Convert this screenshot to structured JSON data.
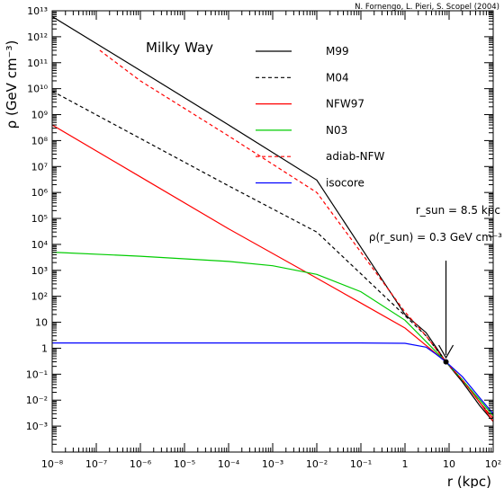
{
  "chart_data": {
    "type": "line",
    "credit": "N. Fornengo, L. Pieri, S. Scopel (2004)",
    "title": "Milky Way",
    "ylabel": "ρ (GeV cm⁻³)",
    "xlabel": "r (kpc)",
    "x_scale": "log",
    "y_scale": "log",
    "xlim": [
      1e-08,
      100
    ],
    "ylim": [
      0.0001,
      10000000000000.0
    ],
    "x_tick_labels": [
      "10⁻⁸",
      "10⁻⁷",
      "10⁻⁶",
      "10⁻⁵",
      "10⁻⁴",
      "10⁻³",
      "10⁻²",
      "10⁻¹",
      "1",
      "10",
      "10²"
    ],
    "y_tick_labels": [
      "10⁻³",
      "10⁻²",
      "10⁻¹",
      "1",
      "10",
      "10²",
      "10³",
      "10⁴",
      "10⁵",
      "10⁶",
      "10⁷",
      "10⁸",
      "10⁹",
      "10¹⁰",
      "10¹¹",
      "10¹²",
      "10¹³"
    ],
    "series": [
      {
        "name": "M99",
        "color": "#000000",
        "dash": "solid",
        "x": [
          1e-08,
          1e-06,
          0.0001,
          0.01,
          1,
          3,
          8.5,
          20,
          50,
          100
        ],
        "y": [
          6000000000000.0,
          50000000000.0,
          400000000.0,
          3000000.0,
          20,
          4,
          0.3,
          0.05,
          0.006,
          0.0015
        ]
      },
      {
        "name": "M04",
        "color": "#000000",
        "dash": "dashed",
        "x": [
          1e-08,
          1e-06,
          0.0001,
          0.01,
          1,
          3,
          8.5,
          20,
          50,
          100
        ],
        "y": [
          8000000000.0,
          120000000.0,
          1800000.0,
          30000.0,
          18,
          3,
          0.3,
          0.06,
          0.008,
          0.002
        ]
      },
      {
        "name": "NFW97",
        "color": "#ff0000",
        "dash": "solid",
        "x": [
          1e-08,
          1e-06,
          0.0001,
          0.01,
          0.1,
          1,
          8.5,
          20,
          50,
          100
        ],
        "y": [
          400000000.0,
          4000000.0,
          40000.0,
          500,
          55,
          6,
          0.3,
          0.06,
          0.008,
          0.0015
        ]
      },
      {
        "name": "N03",
        "color": "#00cc00",
        "dash": "solid",
        "x": [
          1e-08,
          1e-06,
          0.0001,
          0.001,
          0.01,
          0.1,
          1,
          8.5,
          20,
          50,
          100
        ],
        "y": [
          5000,
          3500,
          2200,
          1500,
          700,
          150,
          12,
          0.3,
          0.06,
          0.01,
          0.0025
        ]
      },
      {
        "name": "adiab-NFW",
        "color": "#ff0000",
        "dash": "dashed",
        "x": [
          1.2e-07,
          1e-06,
          0.0001,
          0.01,
          1,
          3,
          8.5,
          20,
          50,
          100
        ],
        "y": [
          300000000000.0,
          20000000000.0,
          150000000.0,
          1000000.0,
          25,
          3,
          0.3,
          0.06,
          0.008,
          0.002
        ]
      },
      {
        "name": "isocore",
        "color": "#0000ff",
        "dash": "solid",
        "x": [
          1e-08,
          0.0001,
          0.1,
          1,
          3,
          5,
          8.5,
          20,
          50,
          100
        ],
        "y": [
          1.6,
          1.6,
          1.6,
          1.55,
          1.1,
          0.6,
          0.3,
          0.08,
          0.012,
          0.003
        ]
      }
    ],
    "annotations": {
      "r_sun": "r_sun = 8.5 kpc",
      "rho_sun": "ρ(r_sun) = 0.3 GeV cm⁻³",
      "marker_point": {
        "x": 8.5,
        "y": 0.3
      }
    },
    "legend_position": "top-right",
    "grid": false
  }
}
